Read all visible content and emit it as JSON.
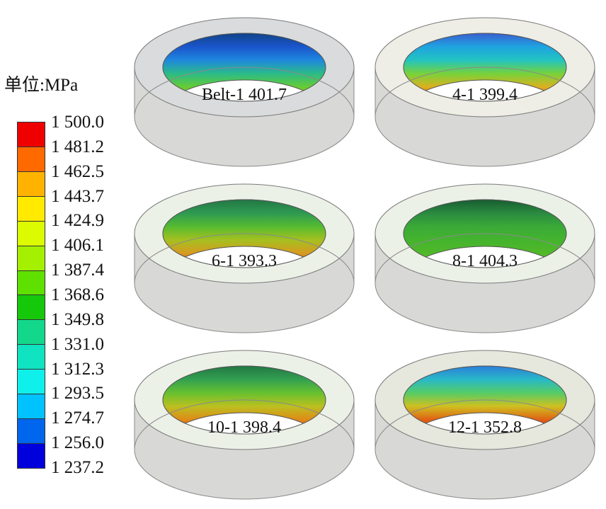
{
  "unit_label": "单位:MPa",
  "legend": {
    "ticks": [
      "1 500.0",
      "1 481.2",
      "1 462.5",
      "1 443.7",
      "1 424.9",
      "1 406.1",
      "1 387.4",
      "1 368.6",
      "1 349.8",
      "1 331.0",
      "1 312.3",
      "1 293.5",
      "1 274.7",
      "1 256.0",
      "1 237.2"
    ],
    "colors": [
      "#ee0000",
      "#ff6a00",
      "#ffb300",
      "#ffea00",
      "#dcfa00",
      "#a4f000",
      "#5ee000",
      "#16c80a",
      "#13d88c",
      "#10e3c0",
      "#0ff0ea",
      "#00c2ff",
      "#0066ee",
      "#0000dd"
    ]
  },
  "panels": [
    {
      "label": "Belt-1 401.7",
      "ring_color": "#dadbdd",
      "wall_gradient": [
        "#114488",
        "#1a55cc",
        "#1f88dd",
        "#2bbb88",
        "#66cc33",
        "#aabb22",
        "#cc9933"
      ]
    },
    {
      "label": "4-1 399.4",
      "ring_color": "#eeeee6",
      "wall_gradient": [
        "#3a5fd0",
        "#1fa3e0",
        "#22c4c0",
        "#77d23a",
        "#ddb020",
        "#e24a10",
        "#b00c00"
      ]
    },
    {
      "label": "6-1 393.3",
      "ring_color": "#ecf1e8",
      "wall_gradient": [
        "#227744",
        "#2e9a52",
        "#55bb30",
        "#a5c020",
        "#d89a20",
        "#c84010",
        "#901000"
      ]
    },
    {
      "label": "8-1 404.3",
      "ring_color": "#ecf1e8",
      "wall_gradient": [
        "#185c30",
        "#2a8a40",
        "#3aaa38",
        "#44b42e",
        "#50b828",
        "#6cc028",
        "#8ac830"
      ]
    },
    {
      "label": "10-1 398.4",
      "ring_color": "#ecf1e8",
      "wall_gradient": [
        "#227744",
        "#33a050",
        "#66c030",
        "#bbc020",
        "#e08a18",
        "#cc3310",
        "#9a0e00"
      ]
    },
    {
      "label": "12-1 352.8",
      "ring_color": "#e6e7dd",
      "wall_gradient": [
        "#2c7fd8",
        "#28b8c8",
        "#55cc66",
        "#d0c020",
        "#e06014",
        "#c22000",
        "#8a0800"
      ]
    }
  ]
}
